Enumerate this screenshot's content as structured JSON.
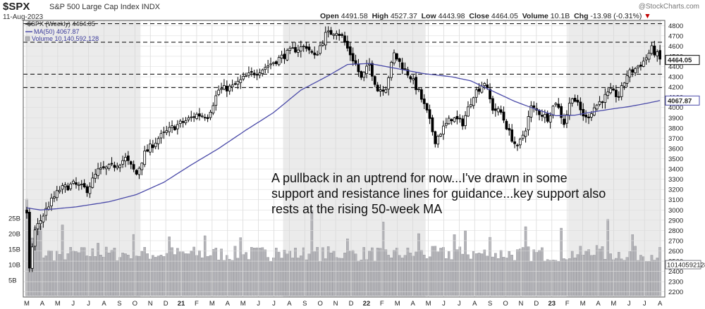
{
  "header": {
    "symbol": "$SPX",
    "name": "S&P 500 Large Cap Index",
    "exchange": "INDX",
    "date": "11-Aug-2023",
    "watermark": "@StockCharts.com",
    "open_label": "Open",
    "open": "4491.58",
    "high_label": "High",
    "high": "4527.37",
    "low_label": "Low",
    "low": "4443.98",
    "close_label": "Close",
    "close": "4464.05",
    "volume_label": "Volume",
    "volume": "10.1B",
    "chg_label": "Chg",
    "chg": "-13.98 (-0.31%)",
    "chg_arrow": "▼"
  },
  "legend": {
    "price": "$SPX (Weekly) 4464.05",
    "ma": "MA(50) 4067.87",
    "volume": "Volume 10,140,592,128"
  },
  "annotation": [
    "A pullback in an uptrend for now...I've drawn in some",
    "support and resistance lines for guidance...key support also",
    "rests at the rising 50-week MA"
  ],
  "colors": {
    "candle": "#000000",
    "ma": "#4a4aa8",
    "volume": "#b4b4b8",
    "volume_edge": "#7a7a82",
    "support": "#000000",
    "shade": "#ebebeb"
  },
  "chart_data": {
    "type": "candlestick",
    "title": "$SPX S&P 500 Large Cap Index INDX",
    "frequency": "weekly",
    "x_tick_labels": [
      "M",
      "A",
      "M",
      "J",
      "J",
      "A",
      "S",
      "O",
      "N",
      "D",
      "21",
      "F",
      "M",
      "A",
      "M",
      "J",
      "J",
      "A",
      "S",
      "O",
      "N",
      "D",
      "22",
      "F",
      "M",
      "A",
      "M",
      "J",
      "J",
      "A",
      "S",
      "O",
      "N",
      "D",
      "23",
      "F",
      "M",
      "A",
      "M",
      "J",
      "J",
      "A"
    ],
    "price_ylim": [
      2150,
      4850
    ],
    "price_ticks": [
      4800,
      4700,
      4600,
      4500,
      4400,
      4300,
      4200,
      4100,
      4000,
      3900,
      3800,
      3700,
      3600,
      3500,
      3400,
      3300,
      3200,
      3100,
      3000,
      2900,
      2800,
      2700,
      2600,
      2500,
      2400,
      2300,
      2200
    ],
    "volume_ticks": [
      {
        "label": "25B",
        "value": 25
      },
      {
        "label": "20B",
        "value": 20
      },
      {
        "label": "15B",
        "value": 15
      },
      {
        "label": "10B",
        "value": 10
      },
      {
        "label": "5B",
        "value": 5
      }
    ],
    "horizontal_lines": [
      4818,
      4637,
      4325,
      4195
    ],
    "last_close_label": "4464.05",
    "last_ma_label": "4067.87",
    "last_volume_label": "10140592128",
    "close_anchors": [
      [
        0,
        2950
      ],
      [
        1,
        2400
      ],
      [
        2,
        2650
      ],
      [
        3,
        2800
      ],
      [
        5,
        2900
      ],
      [
        8,
        3050
      ],
      [
        12,
        3200
      ],
      [
        17,
        3250
      ],
      [
        22,
        3200
      ],
      [
        26,
        3380
      ],
      [
        31,
        3420
      ],
      [
        36,
        3500
      ],
      [
        40,
        3350
      ],
      [
        43,
        3550
      ],
      [
        48,
        3700
      ],
      [
        53,
        3800
      ],
      [
        58,
        3870
      ],
      [
        62,
        3930
      ],
      [
        66,
        3920
      ],
      [
        70,
        4170
      ],
      [
        75,
        4200
      ],
      [
        80,
        4300
      ],
      [
        86,
        4380
      ],
      [
        91,
        4460
      ],
      [
        97,
        4560
      ],
      [
        102,
        4600
      ],
      [
        105,
        4490
      ],
      [
        109,
        4710
      ],
      [
        113,
        4750
      ],
      [
        115,
        4690
      ],
      [
        117,
        4575
      ],
      [
        120,
        4420
      ],
      [
        122,
        4280
      ],
      [
        125,
        4420
      ],
      [
        128,
        4170
      ],
      [
        131,
        4200
      ],
      [
        134,
        4520
      ],
      [
        137,
        4400
      ],
      [
        140,
        4300
      ],
      [
        143,
        4150
      ],
      [
        146,
        3950
      ],
      [
        149,
        3680
      ],
      [
        152,
        3800
      ],
      [
        155,
        3900
      ],
      [
        159,
        3850
      ],
      [
        163,
        4130
      ],
      [
        167,
        4250
      ],
      [
        170,
        3990
      ],
      [
        173,
        3950
      ],
      [
        176,
        3750
      ],
      [
        179,
        3600
      ],
      [
        182,
        3800
      ],
      [
        184,
        4000
      ],
      [
        187,
        3950
      ],
      [
        190,
        3900
      ],
      [
        193,
        4060
      ],
      [
        196,
        3850
      ],
      [
        199,
        4120
      ],
      [
        202,
        3970
      ],
      [
        204,
        3890
      ],
      [
        207,
        4000
      ],
      [
        210,
        4080
      ],
      [
        213,
        4150
      ],
      [
        216,
        4110
      ],
      [
        219,
        4320
      ],
      [
        222,
        4380
      ],
      [
        225,
        4450
      ],
      [
        228,
        4570
      ],
      [
        230,
        4510
      ],
      [
        231,
        4464.05
      ]
    ],
    "ma_anchors": [
      [
        0,
        3020
      ],
      [
        5,
        3000
      ],
      [
        10,
        3010
      ],
      [
        18,
        3030
      ],
      [
        30,
        3080
      ],
      [
        40,
        3150
      ],
      [
        50,
        3270
      ],
      [
        60,
        3440
      ],
      [
        70,
        3600
      ],
      [
        80,
        3780
      ],
      [
        90,
        3950
      ],
      [
        100,
        4170
      ],
      [
        110,
        4310
      ],
      [
        117,
        4420
      ],
      [
        125,
        4430
      ],
      [
        135,
        4380
      ],
      [
        145,
        4330
      ],
      [
        155,
        4300
      ],
      [
        162,
        4260
      ],
      [
        170,
        4160
      ],
      [
        178,
        4060
      ],
      [
        185,
        3990
      ],
      [
        193,
        3920
      ],
      [
        200,
        3925
      ],
      [
        205,
        3950
      ],
      [
        212,
        3980
      ],
      [
        220,
        4010
      ],
      [
        226,
        4040
      ],
      [
        231,
        4067.87
      ]
    ]
  }
}
